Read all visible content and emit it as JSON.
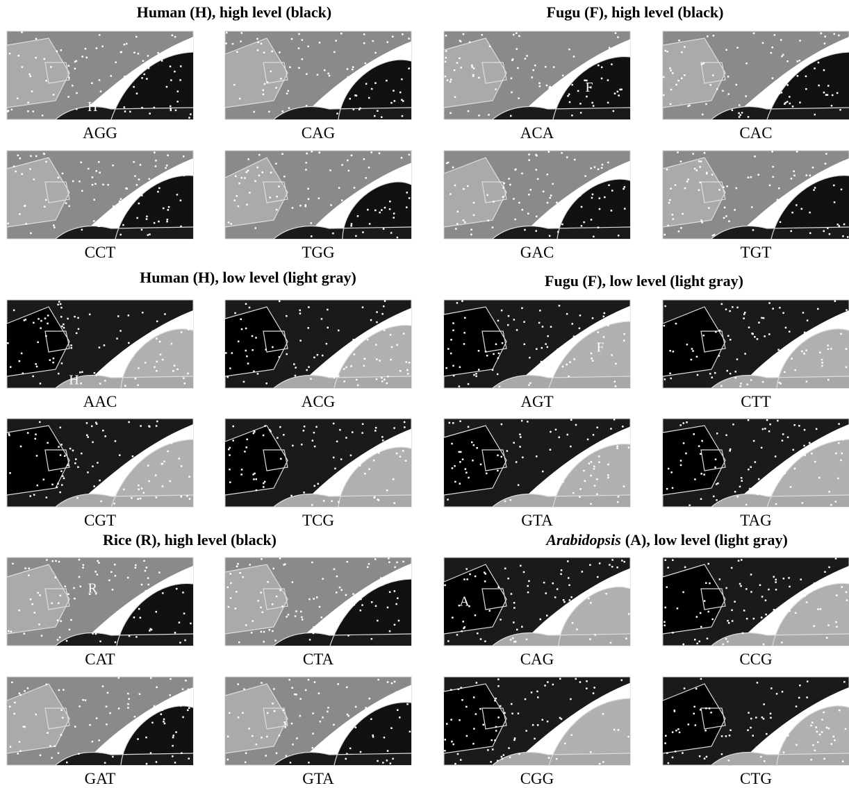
{
  "panels": [
    {
      "title": "Human (H), high level (black)",
      "maps": [
        {
          "label": "AGG",
          "marker": "H"
        },
        {
          "label": "CAG"
        },
        {
          "label": "CCT"
        },
        {
          "label": "TGG"
        }
      ]
    },
    {
      "title": "Fugu (F), high level (black)",
      "maps": [
        {
          "label": "ACA",
          "marker": "F"
        },
        {
          "label": "CAC"
        },
        {
          "label": "GAC"
        },
        {
          "label": "TGT"
        }
      ]
    },
    {
      "title": "Human (H), low level (light gray)",
      "maps": [
        {
          "label": "AAC",
          "marker": "H"
        },
        {
          "label": "ACG"
        },
        {
          "label": "CGT"
        },
        {
          "label": "TCG"
        }
      ]
    },
    {
      "title": "Fugu (F), low level (light gray)",
      "maps": [
        {
          "label": "AGT",
          "marker": "F"
        },
        {
          "label": "CTT"
        },
        {
          "label": "GTA"
        },
        {
          "label": "TAG"
        }
      ]
    },
    {
      "title": "Rice (R), high level (black)",
      "maps": [
        {
          "label": "CAT",
          "marker": "R"
        },
        {
          "label": "CTA"
        },
        {
          "label": "GAT"
        },
        {
          "label": "GTA"
        }
      ]
    },
    {
      "title_italic": "Arabidopsis",
      "title": "(A), low level (light gray)",
      "maps": [
        {
          "label": "CAG",
          "marker": "A"
        },
        {
          "label": "CCG"
        },
        {
          "label": "CGG"
        },
        {
          "label": "CTG"
        }
      ]
    }
  ]
}
